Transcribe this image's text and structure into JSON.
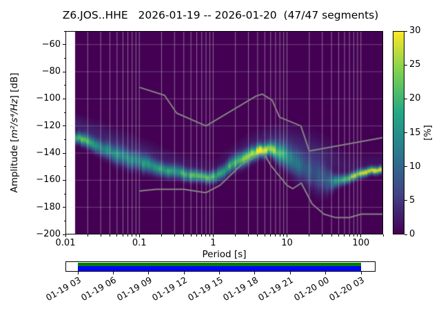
{
  "chart_data": {
    "type": "heatmap",
    "title": "Z6.JOS..HHE   2026-01-19 -- 2026-01-20  (47/47 segments)",
    "xlabel": "Period [s]",
    "ylabel": "Amplitude [m²/s⁴/Hz] [dB]",
    "ylabel_parts": {
      "prefix": "Amplitude [",
      "math": "m²/s⁴/Hz",
      "suffix": "] [dB]"
    },
    "xscale": "log",
    "xlim": [
      0.01,
      200
    ],
    "ylim": [
      -200,
      -50
    ],
    "x_tick_values": [
      0.01,
      0.1,
      1,
      10,
      100
    ],
    "x_tick_labels": [
      "0.01",
      "0.1",
      "1",
      "10",
      "100"
    ],
    "y_tick_values": [
      -60,
      -80,
      -100,
      -120,
      -140,
      -160,
      -180,
      -200
    ],
    "y_tick_labels": [
      "−60",
      "−80",
      "−100",
      "−120",
      "−140",
      "−160",
      "−180",
      "−200"
    ],
    "grid": true,
    "histogram_background": "#440154",
    "data_period_range": [
      0.0135,
      190
    ],
    "colorbar": {
      "label": "[%]",
      "min": 0,
      "max": 30,
      "tick_values": [
        0,
        5,
        10,
        15,
        20,
        25,
        30
      ],
      "tick_labels": [
        "0",
        "5",
        "10",
        "15",
        "20",
        "25",
        "30"
      ],
      "colormap": "viridis",
      "stops": [
        "#440154",
        "#414487",
        "#2a788e",
        "#22a884",
        "#7ad151",
        "#fde725"
      ]
    },
    "psd_histogram_ridge": {
      "note": "probability ridge of the PPSD histogram: [period_s, center_dB, peak_percent, spread_dB]",
      "points": [
        [
          0.0135,
          -128,
          24,
          2.5
        ],
        [
          0.02,
          -131,
          20,
          3
        ],
        [
          0.03,
          -136,
          16,
          3.5
        ],
        [
          0.05,
          -141,
          14,
          4.5
        ],
        [
          0.08,
          -145,
          14,
          4.2
        ],
        [
          0.12,
          -148,
          17,
          4
        ],
        [
          0.2,
          -152,
          19,
          3.2
        ],
        [
          0.3,
          -154,
          20,
          3
        ],
        [
          0.5,
          -156,
          21,
          2.8
        ],
        [
          0.8,
          -158,
          22,
          2.5
        ],
        [
          1.2,
          -156,
          20,
          3
        ],
        [
          2.0,
          -147,
          20,
          3.5
        ],
        [
          3.0,
          -142,
          24,
          3.5
        ],
        [
          4.5,
          -138,
          29,
          3
        ],
        [
          6.0,
          -137,
          28,
          3.2
        ],
        [
          8.0,
          -140,
          20,
          5
        ],
        [
          10,
          -143,
          15,
          6
        ],
        [
          13,
          -147,
          12,
          6.5
        ],
        [
          18,
          -152,
          10,
          7
        ],
        [
          25,
          -156,
          8,
          8
        ],
        [
          35,
          -160,
          10,
          6
        ],
        [
          45,
          -161,
          16,
          3
        ],
        [
          60,
          -159,
          22,
          2.2
        ],
        [
          80,
          -157,
          26,
          2
        ],
        [
          100,
          -155,
          28,
          2
        ],
        [
          140,
          -153,
          30,
          1.8
        ],
        [
          190,
          -152,
          30,
          1.8
        ]
      ],
      "secondary": [
        [
          0.0135,
          -118,
          3,
          4
        ],
        [
          0.03,
          -126,
          3,
          5
        ],
        [
          0.08,
          -134,
          2.5,
          5
        ],
        [
          0.3,
          -146,
          2,
          4
        ],
        [
          1,
          -150,
          1,
          4
        ],
        [
          3,
          -133,
          2,
          5
        ],
        [
          6,
          -128,
          3,
          5
        ],
        [
          10,
          -130,
          3,
          7
        ],
        [
          20,
          -136,
          3,
          8
        ],
        [
          35,
          -143,
          3,
          8
        ],
        [
          60,
          -150,
          2,
          6
        ],
        [
          120,
          -147,
          1.5,
          4
        ],
        [
          190,
          -146,
          1.5,
          4
        ]
      ]
    },
    "noise_models": {
      "color": "#858585",
      "nhnm": [
        [
          0.1,
          -91.5
        ],
        [
          0.22,
          -97.4
        ],
        [
          0.32,
          -110.5
        ],
        [
          0.8,
          -120.0
        ],
        [
          3.8,
          -98.0
        ],
        [
          4.6,
          -96.5
        ],
        [
          6.3,
          -101.0
        ],
        [
          7.9,
          -113.5
        ],
        [
          15.4,
          -120.0
        ],
        [
          20.0,
          -138.5
        ],
        [
          200.0,
          -128.5
        ]
      ],
      "nlnm": [
        [
          0.1,
          -168.0
        ],
        [
          0.17,
          -166.7
        ],
        [
          0.4,
          -166.7
        ],
        [
          0.8,
          -169.2
        ],
        [
          1.24,
          -163.7
        ],
        [
          2.4,
          -148.6
        ],
        [
          4.3,
          -141.1
        ],
        [
          5.0,
          -141.1
        ],
        [
          6.0,
          -149.0
        ],
        [
          10.0,
          -163.8
        ],
        [
          12.0,
          -166.2
        ],
        [
          15.6,
          -162.1
        ],
        [
          21.9,
          -177.5
        ],
        [
          31.6,
          -185.0
        ],
        [
          45.0,
          -187.5
        ],
        [
          70.0,
          -187.5
        ],
        [
          101.0,
          -185.0
        ],
        [
          200.0,
          -185.0
        ]
      ]
    }
  },
  "timeline": {
    "tick_labels": [
      "01-19 03",
      "01-19 06",
      "01-19 09",
      "01-19 12",
      "01-19 15",
      "01-19 18",
      "01-19 21",
      "01-20 00",
      "01-20 03"
    ],
    "outline_color": "#000000",
    "background_color": "#ffffff",
    "top_bar_color": "#008000",
    "bottom_bar_color": "#0000ff"
  }
}
